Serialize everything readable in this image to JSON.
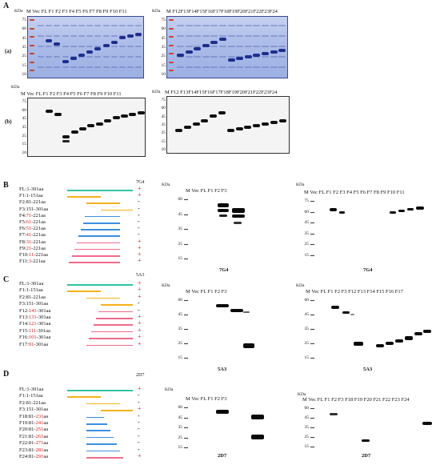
{
  "panels": {
    "A": {
      "letter": "A",
      "row_a_label": "(a)",
      "row_b_label": "(b)",
      "kda": "KDa",
      "gel_left_lanes": "M  Vec  FL  F1  F2  F3  F4  F5  F6  F7  F8  F9 F10 F11",
      "gel_right_lanes": "M  F12F13F14F15F16F17F18F19F20F21F22F23F24",
      "blot_left_lanes": "M  Vec  FL  F1   F2  F3  F4  F5  F6  F7  F8  F9 F10 F11",
      "blot_right_lanes": "M  F12  F13F14F15F16F17F18F19F20F21F22F23F24",
      "mw_markers": [
        "75",
        "60",
        "45",
        "35",
        "25",
        "15",
        "10"
      ]
    },
    "B": {
      "letter": "B",
      "antibody": "7G4",
      "constructs": [
        {
          "name": "FL:1-301aa",
          "pre": "FL:1-301aa",
          "red": "",
          "post": "",
          "sign": "+"
        },
        {
          "name": "F1:1-151aa",
          "pre": "F1:1-151aa",
          "red": "",
          "post": "",
          "sign": "+"
        },
        {
          "name": "F2:81-221aa",
          "pre": "F2:81-221aa",
          "red": "",
          "post": "",
          "sign": "-"
        },
        {
          "name": "F3:151-301aa",
          "pre": "F3:151-301aa",
          "red": "",
          "post": "",
          "sign": "-"
        },
        {
          "name": "F4:71-221aa",
          "pre": "F4:",
          "red": "71",
          "post": "-221aa",
          "sign": "-"
        },
        {
          "name": "F5:61-221aa",
          "pre": "F5:",
          "red": "61",
          "post": "-221aa",
          "sign": "-"
        },
        {
          "name": "F6:51-221aa",
          "pre": "F6:",
          "red": "51",
          "post": "-221aa",
          "sign": "-"
        },
        {
          "name": "F7:41-221aa",
          "pre": "F7:",
          "red": "41",
          "post": "-221aa",
          "sign": "-"
        },
        {
          "name": "F8:31-221aa",
          "pre": "F8:",
          "red": "31",
          "post": "-221aa",
          "sign": "+"
        },
        {
          "name": "F9:21-221aa",
          "pre": "F9:",
          "red": "21",
          "post": "-221aa",
          "sign": "+"
        },
        {
          "name": "F10:11-221aa",
          "pre": "F10:",
          "red": "11",
          "post": "-221aa",
          "sign": "+"
        },
        {
          "name": "F11:3-221aa",
          "pre": "F11:",
          "red": "3",
          "post": "-221aa",
          "sign": "+"
        }
      ],
      "blot1_lanes": "M     Vec      FL       F1      F2      F3",
      "blot2_lanes": "M  Vec  FL   F1   F2   F3   F4   F5   F6   F7   F8   F9  F10 F11",
      "blot1_mw": [
        "60",
        "45",
        "35",
        "25",
        "15"
      ],
      "blot2_mw": [
        "75",
        "60",
        "45",
        "35",
        "25",
        "15"
      ],
      "caption1": "7G4",
      "caption2": "7G4",
      "kda": "KDa"
    },
    "C": {
      "letter": "C",
      "antibody": "5A3",
      "constructs": [
        {
          "name": "FL:1-301aa",
          "pre": "FL:1-301aa",
          "red": "",
          "post": "",
          "sign": "+"
        },
        {
          "name": "F1:1-151aa",
          "pre": "F1:1-151aa",
          "red": "",
          "post": "",
          "sign": "+"
        },
        {
          "name": "F2:81-221aa",
          "pre": "F2:81-221aa",
          "red": "",
          "post": "",
          "sign": "+"
        },
        {
          "name": "F3:151-301aa",
          "pre": "F3:151-301aa",
          "red": "",
          "post": "",
          "sign": "-"
        },
        {
          "name": "F12:141-301aa",
          "pre": "F12:",
          "red": "141",
          "post": "-301aa",
          "sign": "-"
        },
        {
          "name": "F13:131-301aa",
          "pre": "F13:",
          "red": "131",
          "post": "-301aa",
          "sign": "+"
        },
        {
          "name": "F14:121-301aa",
          "pre": "F14:",
          "red": "121",
          "post": "-301aa",
          "sign": "+"
        },
        {
          "name": "F15:111-301aa",
          "pre": "F15:",
          "red": "111",
          "post": "-301aa",
          "sign": "+"
        },
        {
          "name": "F16:101-301aa",
          "pre": "F16:",
          "red": "101",
          "post": "-301aa",
          "sign": "+"
        },
        {
          "name": "F17:91-301aa",
          "pre": "F17:",
          "red": "91",
          "post": "-301aa",
          "sign": "+"
        }
      ],
      "blot1_lanes": "M     Vec      FL       F1      F2      F3",
      "blot2_lanes": "M  Vec  FL   F1   F2   F3  F12 F13 F14 F15  F16  F17",
      "blot1_mw": [
        "60",
        "45",
        "35",
        "25",
        "15"
      ],
      "blot2_mw": [
        "60",
        "45",
        "35",
        "25",
        "15"
      ],
      "caption1": "5A3",
      "caption2": "5A3",
      "kda": "KDa"
    },
    "D": {
      "letter": "D",
      "antibody": "2D7",
      "constructs": [
        {
          "name": "FL:1-301aa",
          "pre": "FL:1-301aa",
          "red": "",
          "post": "",
          "sign": "+"
        },
        {
          "name": "F1:1-151aa",
          "pre": "F1:1-151aa",
          "red": "",
          "post": "",
          "sign": "-"
        },
        {
          "name": "F2:81-221aa",
          "pre": "F2:81-221aa",
          "red": "",
          "post": "",
          "sign": "-"
        },
        {
          "name": "F3:151-301aa",
          "pre": "F3:151-301aa",
          "red": "",
          "post": "",
          "sign": "+"
        },
        {
          "name": "F18:81-231aa",
          "pre": "F18:81-",
          "red": "231",
          "post": "aa",
          "sign": "-"
        },
        {
          "name": "F19:81-241aa",
          "pre": "F19:81-",
          "red": "241",
          "post": "aa",
          "sign": "-"
        },
        {
          "name": "F20:81-251aa",
          "pre": "F20:81-",
          "red": "251",
          "post": "aa",
          "sign": "-"
        },
        {
          "name": "F21:81-261aa",
          "pre": "F21:81-",
          "red": "261",
          "post": "aa",
          "sign": "-"
        },
        {
          "name": "F22:81-271aa",
          "pre": "F22:81-",
          "red": "271",
          "post": "aa",
          "sign": "-"
        },
        {
          "name": "F23:81-281aa",
          "pre": "F23:81-",
          "red": "281",
          "post": "aa",
          "sign": "-"
        },
        {
          "name": "F24:81-291aa",
          "pre": "F24:81-",
          "red": "291",
          "post": "aa",
          "sign": "+"
        }
      ],
      "blot1_lanes": "M      Vec      FL      F1      F2      F3",
      "blot2_lanes": "M  Vec  FL   F1   F2   F3  F18  F19  F20  F21  F22  F23  F24",
      "blot1_mw": [
        "60",
        "45",
        "35",
        "25",
        "15"
      ],
      "blot2_mw": [
        "60",
        "45",
        "35",
        "25",
        "15"
      ],
      "caption1": "2D7",
      "caption2": "2D7",
      "kda": "KDa"
    }
  },
  "colors": {
    "fl_bar": "#2ec4a0",
    "f123_bar": "#f5b21b",
    "blue_bar": "#3b8fe0",
    "pink_bar": "#f06a8a",
    "positive": "#d11111",
    "coomassie": "#9cb0e3"
  }
}
